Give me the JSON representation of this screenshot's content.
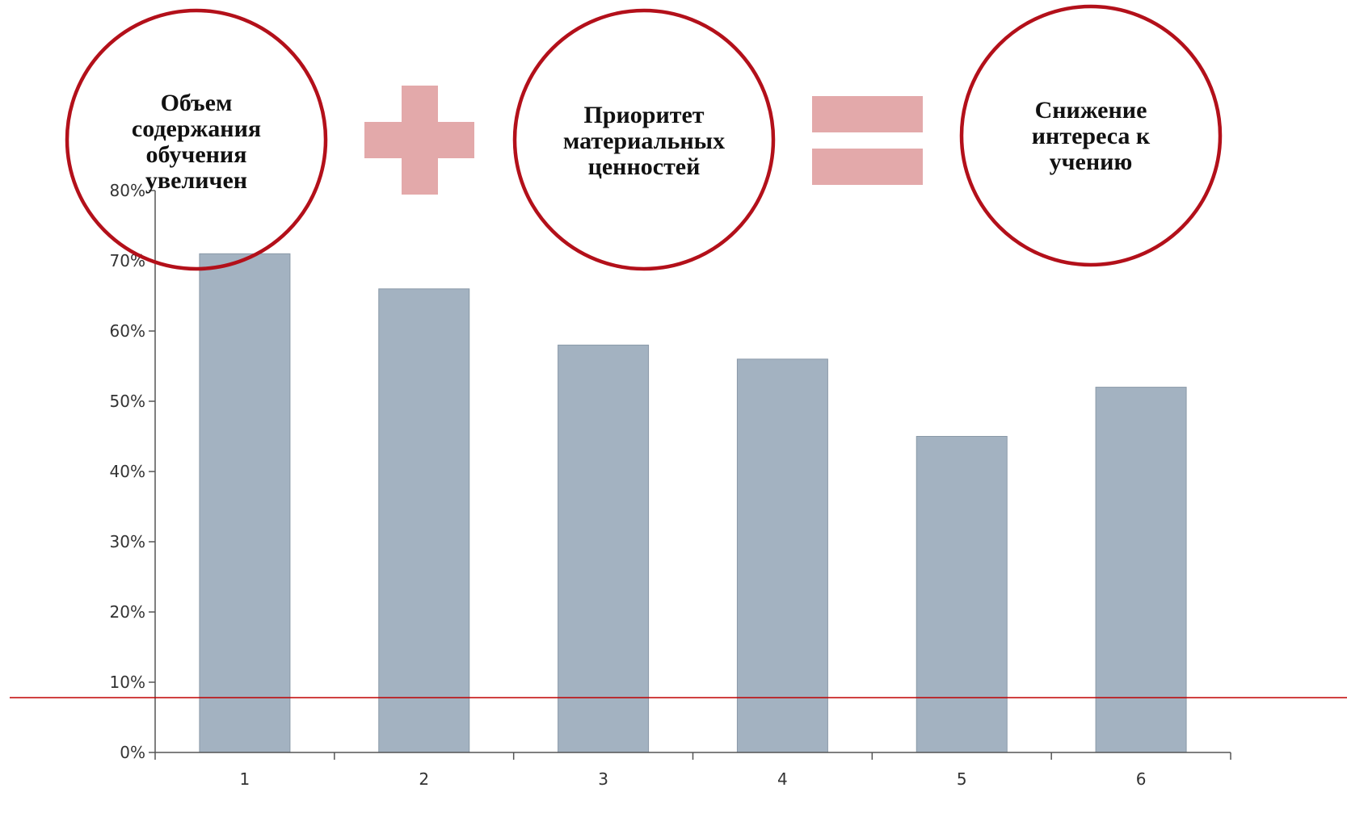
{
  "chart_data": {
    "type": "bar",
    "categories": [
      "1",
      "2",
      "3",
      "4",
      "5",
      "6"
    ],
    "values": [
      71,
      66,
      58,
      56,
      45,
      52
    ],
    "ylim": [
      0,
      80
    ],
    "yticks": [
      0,
      10,
      20,
      30,
      40,
      50,
      60,
      70,
      80
    ],
    "ytick_labels": [
      "0%",
      "10%",
      "20%",
      "30%",
      "40%",
      "50%",
      "60%",
      "70%",
      "80%"
    ],
    "title": "",
    "xlabel": "",
    "ylabel": "",
    "grid": false,
    "bar_color": "#a3b2c1",
    "reference_line": {
      "value": 7.8,
      "color": "#c00000"
    }
  },
  "diagram": {
    "circle_color": "#b3101a",
    "operator_color": "#e3a9aa",
    "circles": [
      {
        "lines": [
          "Объем",
          "содержания",
          "обучения",
          "увеличен"
        ]
      },
      {
        "lines": [
          "Приоритет",
          "материальных",
          "ценностей"
        ]
      },
      {
        "lines": [
          "Снижение",
          "интереса к",
          "учению"
        ]
      }
    ],
    "operators": [
      {
        "icon": "plus-icon"
      },
      {
        "icon": "equals-icon"
      }
    ]
  }
}
